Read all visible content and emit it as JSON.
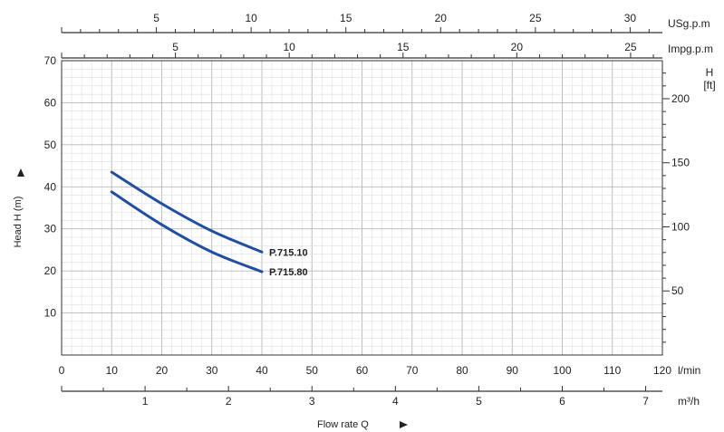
{
  "chart_data": {
    "type": "line",
    "grid": true,
    "xlabel": "Flow rate Q",
    "ylabel": "Head H (m)",
    "x_unit": "l/min",
    "xlim": [
      0,
      120
    ],
    "x_ticks": [
      0,
      10,
      20,
      30,
      40,
      50,
      60,
      70,
      80,
      90,
      100,
      110,
      120
    ],
    "ylim": [
      0,
      70
    ],
    "y_ticks": [
      10,
      20,
      30,
      40,
      50,
      60,
      70
    ],
    "series": [
      {
        "name": "P.715.10",
        "color": "#1f4ea3",
        "x": [
          10,
          20,
          30,
          40
        ],
        "y": [
          43.5,
          36,
          29.5,
          24.5
        ]
      },
      {
        "name": "P.715.80",
        "color": "#1f4ea3",
        "x": [
          10,
          20,
          30,
          40
        ],
        "y": [
          38.8,
          31,
          24.5,
          19.8
        ]
      }
    ],
    "secondary_axes": {
      "usgpm": {
        "label": "USg.p.m",
        "ticks": [
          5,
          10,
          15,
          20,
          25,
          30
        ]
      },
      "impgpm": {
        "label": "Impg.p.m",
        "ticks": [
          5,
          10,
          15,
          20,
          25
        ]
      },
      "m3h": {
        "label": "m³/h",
        "ticks": [
          1,
          2,
          3,
          4,
          5,
          6,
          7
        ]
      },
      "ft": {
        "label_line1": "H",
        "label_line2": "[ft]",
        "ticks": [
          50,
          100,
          150,
          200
        ]
      }
    }
  }
}
